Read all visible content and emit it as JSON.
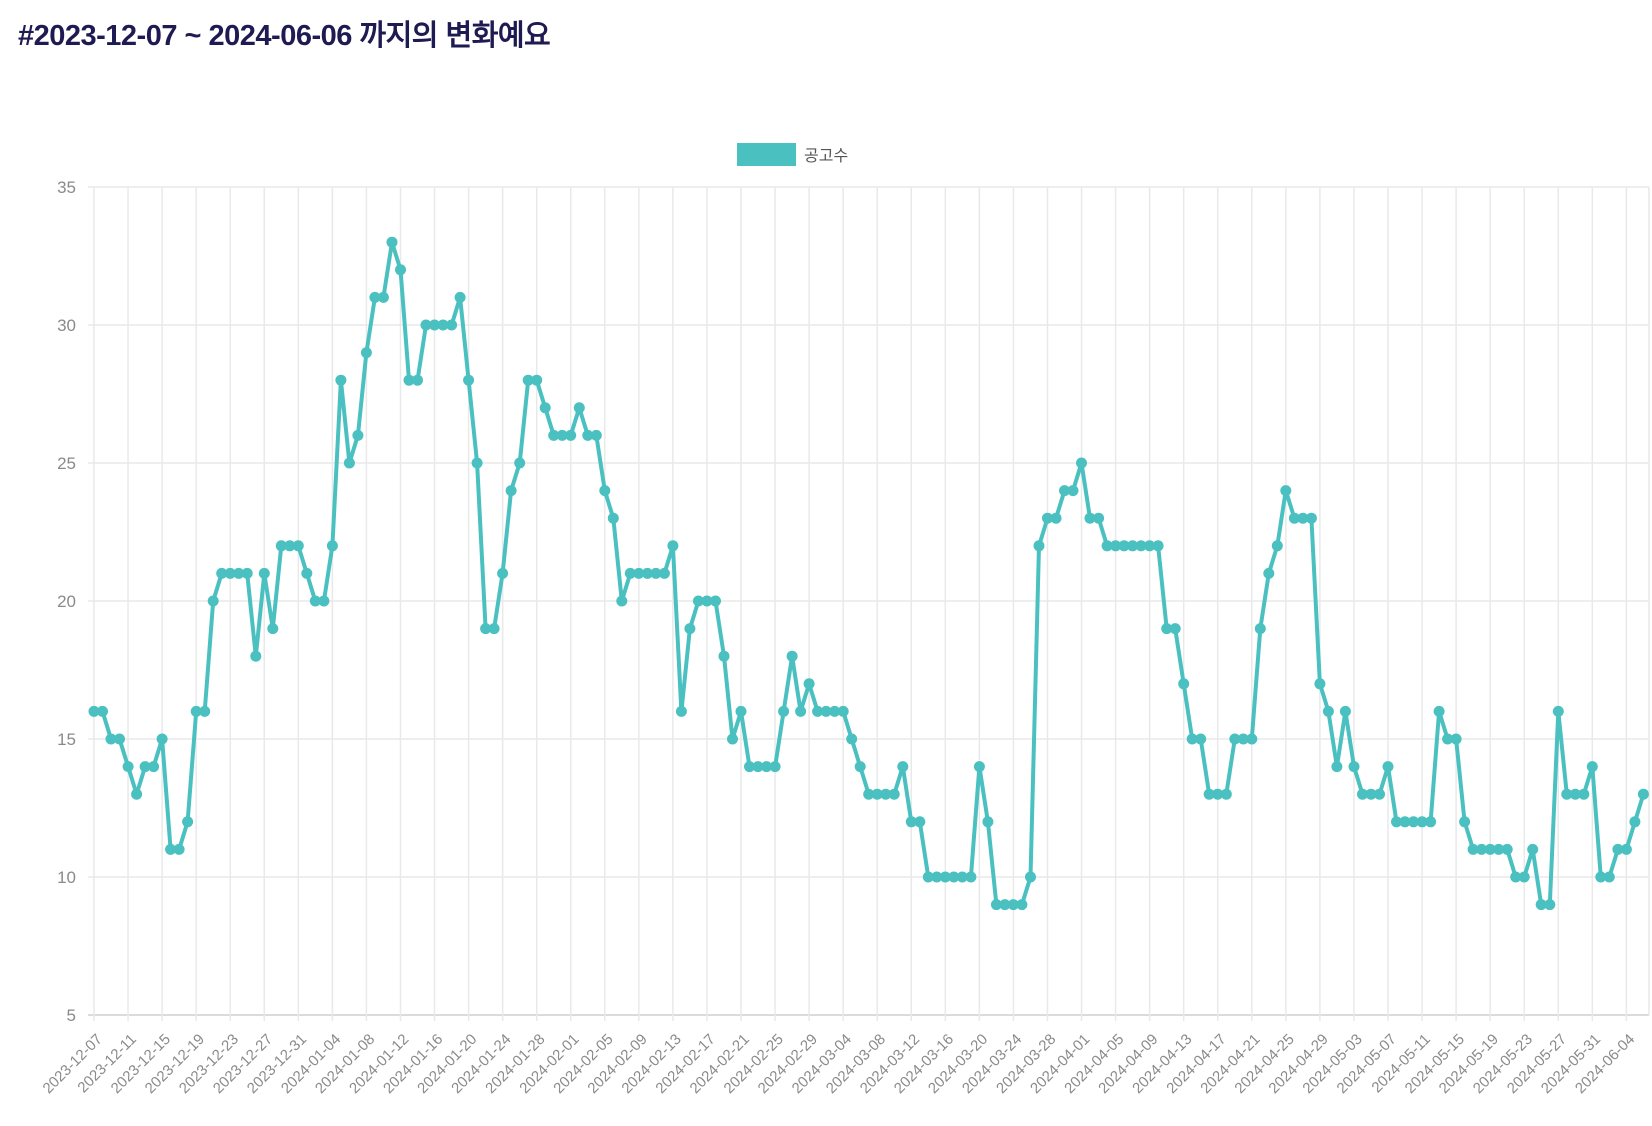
{
  "page": {
    "background": "#ffffff"
  },
  "title": {
    "text": "#2023-12-07 ~ 2024-06-06 까지의 변화예요",
    "color": "#1e1a52"
  },
  "legend": {
    "label": "공고수",
    "swatch_color": "#4bc0c0"
  },
  "axes": {
    "tick_color": "#8a8a8a",
    "grid_color": "#e9e9e9",
    "border_color": "#cfcfcf",
    "y_tick_font_px": 17,
    "x_tick_font_px": 15
  },
  "chart_data": {
    "type": "line",
    "title": "#2023-12-07 ~ 2024-06-06 까지의 변화예요",
    "legend_position": "top-center",
    "grid": true,
    "point_style": "circle",
    "line_color": "#4bc0c0",
    "ylim": [
      5,
      35
    ],
    "y_ticks": [
      35,
      30,
      25,
      20,
      15,
      10,
      5
    ],
    "points_per_tick": 4,
    "x_tick_labels": [
      "2023-12-07",
      "2023-12-11",
      "2023-12-15",
      "2023-12-19",
      "2023-12-23",
      "2023-12-27",
      "2023-12-31",
      "2024-01-04",
      "2024-01-08",
      "2024-01-12",
      "2024-01-16",
      "2024-01-20",
      "2024-01-24",
      "2024-01-28",
      "2024-02-01",
      "2024-02-05",
      "2024-02-09",
      "2024-02-13",
      "2024-02-17",
      "2024-02-21",
      "2024-02-25",
      "2024-02-29",
      "2024-03-04",
      "2024-03-08",
      "2024-03-12",
      "2024-03-16",
      "2024-03-20",
      "2024-03-24",
      "2024-03-28",
      "2024-04-01",
      "2024-04-05",
      "2024-04-09",
      "2024-04-13",
      "2024-04-17",
      "2024-04-21",
      "2024-04-25",
      "2024-04-29",
      "2024-05-03",
      "2024-05-07",
      "2024-05-11",
      "2024-05-15",
      "2024-05-19",
      "2024-05-23",
      "2024-05-27",
      "2024-05-31",
      "2024-06-04"
    ],
    "series": [
      {
        "name": "공고수",
        "color": "#4bc0c0",
        "values": [
          16,
          16,
          15,
          15,
          14,
          13,
          14,
          14,
          15,
          11,
          11,
          12,
          16,
          16,
          20,
          21,
          21,
          21,
          21,
          18,
          21,
          19,
          22,
          22,
          22,
          21,
          20,
          20,
          22,
          28,
          25,
          26,
          29,
          31,
          31,
          33,
          32,
          28,
          28,
          30,
          30,
          30,
          30,
          31,
          28,
          25,
          19,
          19,
          21,
          24,
          25,
          28,
          28,
          27,
          26,
          26,
          26,
          27,
          26,
          26,
          24,
          23,
          20,
          21,
          21,
          21,
          21,
          21,
          22,
          16,
          19,
          20,
          20,
          20,
          18,
          15,
          16,
          14,
          14,
          14,
          14,
          16,
          18,
          16,
          17,
          16,
          16,
          16,
          16,
          15,
          14,
          13,
          13,
          13,
          13,
          14,
          12,
          12,
          10,
          10,
          10,
          10,
          10,
          10,
          14,
          12,
          9,
          9,
          9,
          9,
          10,
          22,
          23,
          23,
          24,
          24,
          25,
          23,
          23,
          22,
          22,
          22,
          22,
          22,
          22,
          22,
          19,
          19,
          17,
          15,
          15,
          13,
          13,
          13,
          15,
          15,
          15,
          19,
          21,
          22,
          24,
          23,
          23,
          23,
          17,
          16,
          14,
          16,
          14,
          13,
          13,
          13,
          14,
          12,
          12,
          12,
          12,
          12,
          16,
          15,
          15,
          12,
          11,
          11,
          11,
          11,
          11,
          10,
          10,
          11,
          9,
          9,
          16,
          13,
          13,
          13,
          14,
          10,
          10,
          11,
          11,
          12,
          13
        ]
      }
    ]
  }
}
